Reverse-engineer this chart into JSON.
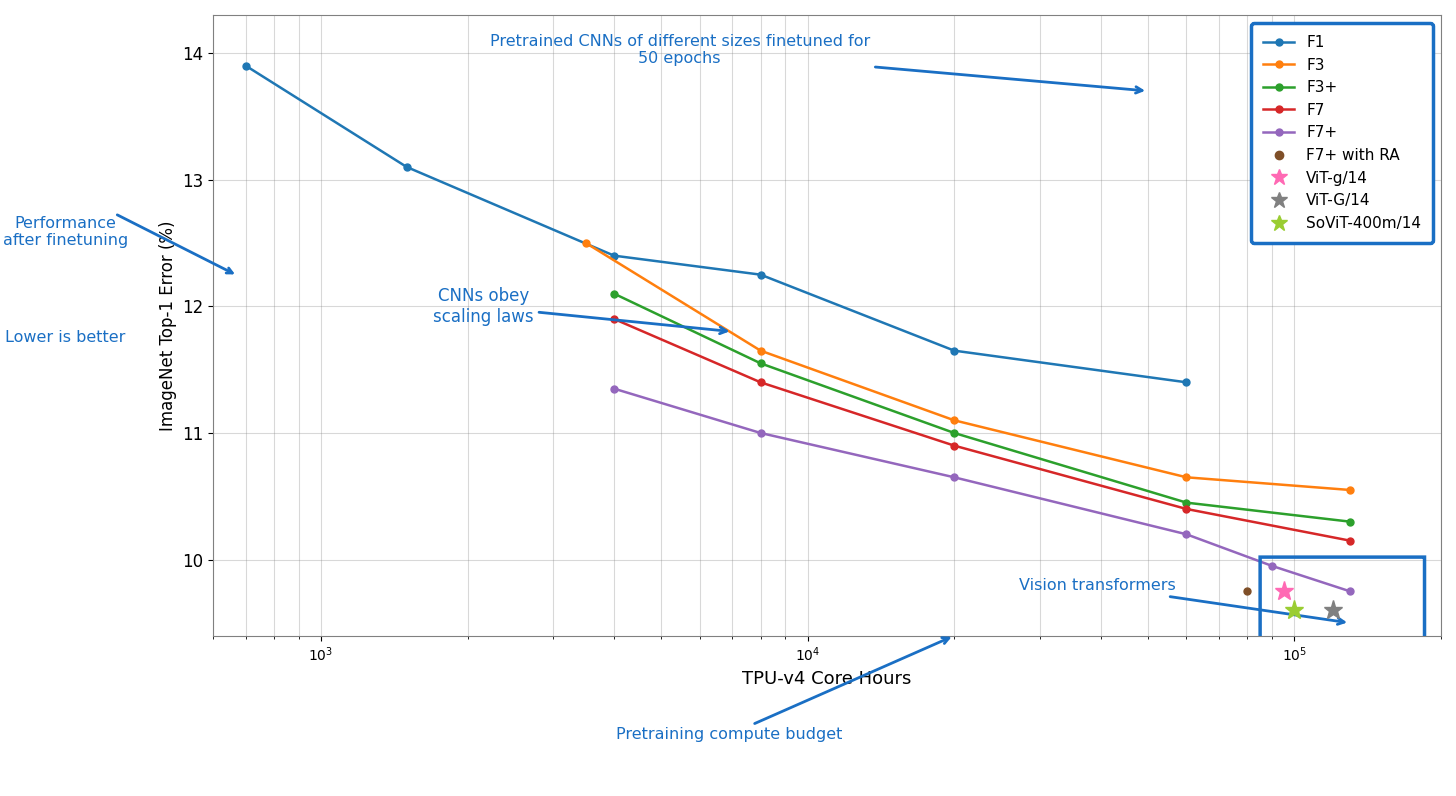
{
  "F1": {
    "x": [
      700,
      1500,
      4000,
      8000,
      20000,
      60000
    ],
    "y": [
      13.9,
      13.1,
      12.4,
      12.25,
      11.65,
      11.4
    ],
    "color": "#1f77b4",
    "marker": "o"
  },
  "F3": {
    "x": [
      3500,
      8000,
      20000,
      60000,
      130000
    ],
    "y": [
      12.5,
      11.65,
      11.1,
      10.65,
      10.55
    ],
    "color": "#ff7f0e",
    "marker": "o"
  },
  "F3+": {
    "x": [
      4000,
      8000,
      20000,
      60000,
      130000
    ],
    "y": [
      12.1,
      11.55,
      11.0,
      10.45,
      10.3
    ],
    "color": "#2ca02c",
    "marker": "o"
  },
  "F7": {
    "x": [
      4000,
      8000,
      20000,
      60000,
      130000
    ],
    "y": [
      11.9,
      11.4,
      10.9,
      10.4,
      10.15
    ],
    "color": "#d62728",
    "marker": "o"
  },
  "F7+": {
    "x": [
      4000,
      8000,
      20000,
      60000,
      90000,
      130000
    ],
    "y": [
      11.35,
      11.0,
      10.65,
      10.2,
      9.95,
      9.75
    ],
    "color": "#9467bd",
    "marker": "o"
  },
  "F7+_RA": {
    "x": [
      80000
    ],
    "y": [
      9.75
    ],
    "color": "#7f4f28",
    "marker": "o"
  },
  "ViT-g/14": {
    "x": [
      95000
    ],
    "y": [
      9.75
    ],
    "color": "#ff69b4",
    "marker": "*"
  },
  "ViT-G/14": {
    "x": [
      120000
    ],
    "y": [
      9.6
    ],
    "color": "#808080",
    "marker": "*"
  },
  "SoViT-400m/14": {
    "x": [
      100000
    ],
    "y": [
      9.6
    ],
    "color": "#9acd32",
    "marker": "*"
  },
  "ylabel": "ImageNet Top-1 Error (%)",
  "xlabel": "TPU-v4 Core Hours",
  "ylim": [
    9.4,
    14.3
  ],
  "xlim_log": [
    600,
    200000
  ]
}
